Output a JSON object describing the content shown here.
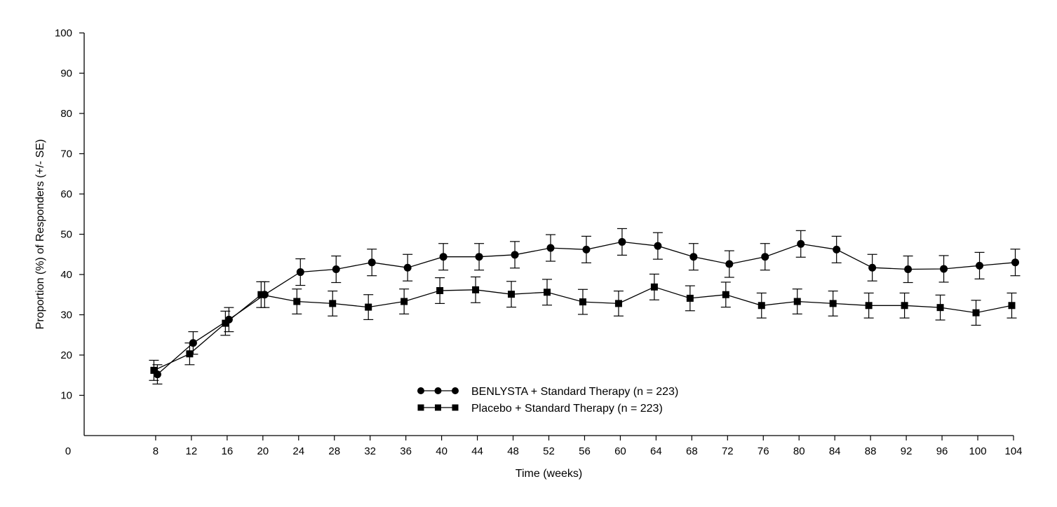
{
  "chart_data": {
    "type": "line",
    "xlabel": "Time (weeks)",
    "ylabel": "Proportion (%) of Responders (+/- SE)",
    "xlim": [
      0,
      104
    ],
    "ylim": [
      0,
      100
    ],
    "x_origin_label": "0",
    "x_ticks": [
      8,
      12,
      16,
      20,
      24,
      28,
      32,
      36,
      40,
      44,
      48,
      52,
      56,
      60,
      64,
      68,
      72,
      76,
      80,
      84,
      88,
      92,
      96,
      100,
      104
    ],
    "y_ticks": [
      10,
      20,
      30,
      40,
      50,
      60,
      70,
      80,
      90,
      100
    ],
    "grid": false,
    "legend_position": "bottom-center",
    "colors": {
      "line": "#000000",
      "background": "#ffffff"
    },
    "series": [
      {
        "name": "BENLYSTA + Standard Therapy (n = 223)",
        "marker": "circle",
        "x": [
          8,
          12,
          16,
          20,
          24,
          28,
          32,
          36,
          40,
          44,
          48,
          52,
          56,
          60,
          64,
          68,
          72,
          76,
          80,
          84,
          88,
          92,
          96,
          100,
          104
        ],
        "values": [
          15.2,
          23.0,
          28.8,
          35.0,
          40.6,
          41.3,
          43.0,
          41.7,
          44.4,
          44.4,
          44.9,
          46.6,
          46.2,
          48.1,
          47.1,
          44.4,
          42.6,
          44.4,
          47.6,
          46.2,
          41.7,
          41.3,
          41.4,
          42.2,
          43.0
        ],
        "se": [
          2.4,
          2.8,
          3.0,
          3.2,
          3.3,
          3.3,
          3.3,
          3.3,
          3.3,
          3.3,
          3.3,
          3.3,
          3.3,
          3.3,
          3.3,
          3.3,
          3.3,
          3.3,
          3.3,
          3.3,
          3.3,
          3.3,
          3.3,
          3.3,
          3.3
        ]
      },
      {
        "name": "Placebo + Standard Therapy (n = 223)",
        "marker": "square",
        "x": [
          8,
          12,
          16,
          20,
          24,
          28,
          32,
          36,
          40,
          44,
          48,
          52,
          56,
          60,
          64,
          68,
          72,
          76,
          80,
          84,
          88,
          92,
          96,
          100,
          104
        ],
        "values": [
          16.2,
          20.3,
          27.9,
          35.0,
          33.3,
          32.8,
          31.9,
          33.3,
          36.0,
          36.2,
          35.1,
          35.6,
          33.2,
          32.8,
          36.9,
          34.1,
          35.0,
          32.3,
          33.3,
          32.8,
          32.3,
          32.3,
          31.8,
          30.5,
          32.3
        ],
        "se": [
          2.5,
          2.7,
          3.0,
          3.2,
          3.1,
          3.1,
          3.1,
          3.1,
          3.2,
          3.2,
          3.2,
          3.2,
          3.1,
          3.1,
          3.2,
          3.1,
          3.1,
          3.1,
          3.1,
          3.1,
          3.1,
          3.1,
          3.1,
          3.1,
          3.1
        ]
      }
    ]
  }
}
